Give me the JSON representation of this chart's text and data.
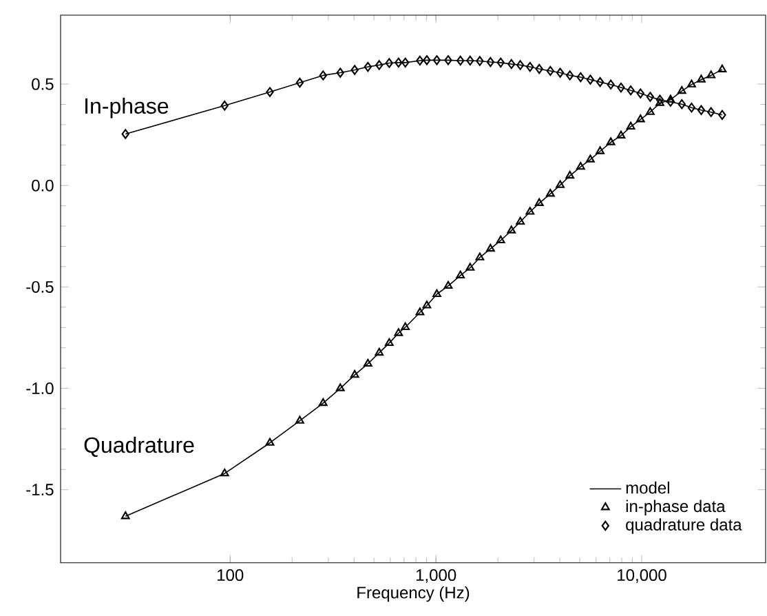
{
  "chart_data": {
    "type": "line",
    "xlabel": "Frequency (Hz)",
    "log": "x",
    "grid": false,
    "legend": "bottom right",
    "xlim": [
      15,
      40000
    ],
    "ylim": [
      -1.86,
      0.84
    ],
    "xticks": [
      {
        "value": 100,
        "label": "100"
      },
      {
        "value": 1000,
        "label": "1,000"
      },
      {
        "value": 10000,
        "label": "10,000"
      }
    ],
    "yticks": [
      0.5,
      {
        "value": 0,
        "label": "0.0"
      },
      -0.5,
      {
        "value": -1,
        "label": "-1.0"
      },
      -1.5
    ],
    "annotations": [
      "In-phase",
      "Quadrature"
    ],
    "x": [
      31,
      94,
      156,
      218,
      283,
      343,
      403,
      467,
      530,
      593,
      658,
      710,
      836,
      903,
      1010,
      1147,
      1315,
      1466,
      1634,
      1841,
      2064,
      2327,
      2570,
      2865,
      3177,
      3597,
      4015,
      4477,
      5048,
      5627,
      6276,
      7074,
      7933,
      8846,
      9862,
      10996,
      12255,
      13801,
      15666,
      17466,
      19462,
      21718,
      24604
    ],
    "series": [
      {
        "name": "model",
        "marker": "none",
        "color": "#000000",
        "values": [
          0.254,
          0.394,
          0.461,
          0.507,
          0.543,
          0.556,
          0.57,
          0.585,
          0.594,
          0.604,
          0.606,
          0.606,
          0.616,
          0.618,
          0.618,
          0.618,
          0.616,
          0.616,
          0.614,
          0.609,
          0.606,
          0.599,
          0.594,
          0.585,
          0.575,
          0.565,
          0.556,
          0.543,
          0.534,
          0.522,
          0.51,
          0.498,
          0.483,
          0.469,
          0.454,
          0.437,
          0.423,
          0.413,
          0.401,
          0.384,
          0.372,
          0.362,
          0.348
        ]
      },
      {
        "marker": "none",
        "color": "#000000",
        "values": [
          -1.631,
          -1.42,
          -1.269,
          -1.16,
          -1.073,
          -1.0,
          -0.934,
          -0.879,
          -0.825,
          -0.777,
          -0.728,
          -0.699,
          -0.626,
          -0.592,
          -0.536,
          -0.495,
          -0.444,
          -0.406,
          -0.355,
          -0.312,
          -0.271,
          -0.222,
          -0.179,
          -0.13,
          -0.087,
          -0.041,
          0.002,
          0.048,
          0.092,
          0.128,
          0.169,
          0.213,
          0.246,
          0.29,
          0.326,
          0.362,
          0.406,
          0.423,
          0.466,
          0.498,
          0.522,
          0.543,
          0.572
        ]
      },
      {
        "name": "in-phase data",
        "type": "scatter",
        "marker": "triangle",
        "color": "#000000",
        "values": [
          -1.631,
          -1.42,
          -1.269,
          -1.16,
          -1.073,
          -1.0,
          -0.934,
          -0.879,
          -0.825,
          -0.777,
          -0.728,
          -0.699,
          -0.626,
          -0.592,
          -0.536,
          -0.495,
          -0.444,
          -0.406,
          -0.355,
          -0.312,
          -0.271,
          -0.222,
          -0.179,
          -0.13,
          -0.087,
          -0.041,
          0.002,
          0.048,
          0.092,
          0.128,
          0.169,
          0.213,
          0.246,
          0.29,
          0.326,
          0.362,
          0.406,
          0.423,
          0.466,
          0.498,
          0.522,
          0.543,
          0.572
        ]
      },
      {
        "name": "quadrature data",
        "type": "scatter",
        "marker": "diamond",
        "color": "#000000",
        "values": [
          0.254,
          0.394,
          0.461,
          0.507,
          0.543,
          0.556,
          0.57,
          0.585,
          0.594,
          0.604,
          0.606,
          0.606,
          0.616,
          0.618,
          0.618,
          0.618,
          0.616,
          0.616,
          0.614,
          0.609,
          0.606,
          0.599,
          0.594,
          0.585,
          0.575,
          0.565,
          0.556,
          0.543,
          0.534,
          0.522,
          0.51,
          0.498,
          0.483,
          0.469,
          0.454,
          0.437,
          0.423,
          0.413,
          0.401,
          0.384,
          0.372,
          0.362,
          0.348
        ]
      }
    ]
  }
}
